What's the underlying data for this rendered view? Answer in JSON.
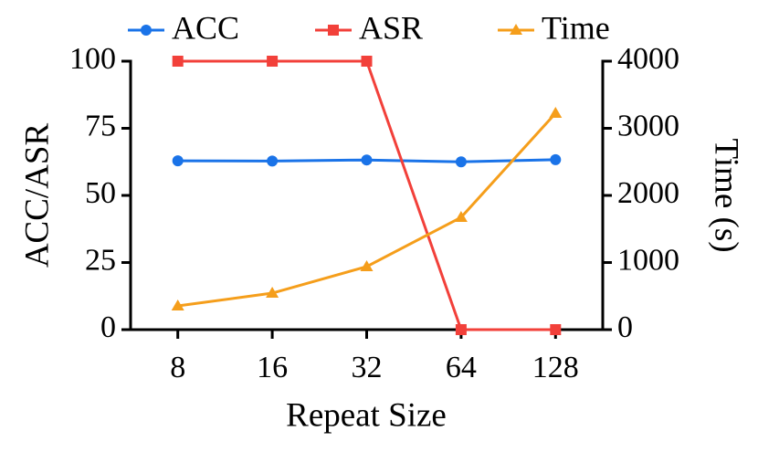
{
  "chart_data": {
    "type": "line",
    "x_label": "Repeat Size",
    "y_label": "ACC/ASR",
    "y2_label": "Time (s)",
    "categories": [
      "8",
      "16",
      "32",
      "64",
      "128"
    ],
    "series": [
      {
        "name": "ACC",
        "color": "#1a73e8",
        "marker": "circle",
        "values": [
          62.9,
          62.8,
          63.2,
          62.5,
          63.3
        ]
      },
      {
        "name": "ASR",
        "color": "#f2403a",
        "marker": "square",
        "values": [
          100,
          100,
          100,
          0,
          0
        ]
      },
      {
        "name": "Time",
        "color": "#f59e1b",
        "marker": "triangle",
        "axis": "y2",
        "values": [
          354,
          544,
          939,
          1673,
          3224
        ]
      }
    ],
    "ylim": [
      0,
      100
    ],
    "yticks": [
      0,
      25,
      50,
      75,
      100
    ],
    "y2lim": [
      0,
      4000
    ],
    "y2ticks": [
      0,
      1000,
      2000,
      3000,
      4000
    ],
    "legend": "top"
  }
}
